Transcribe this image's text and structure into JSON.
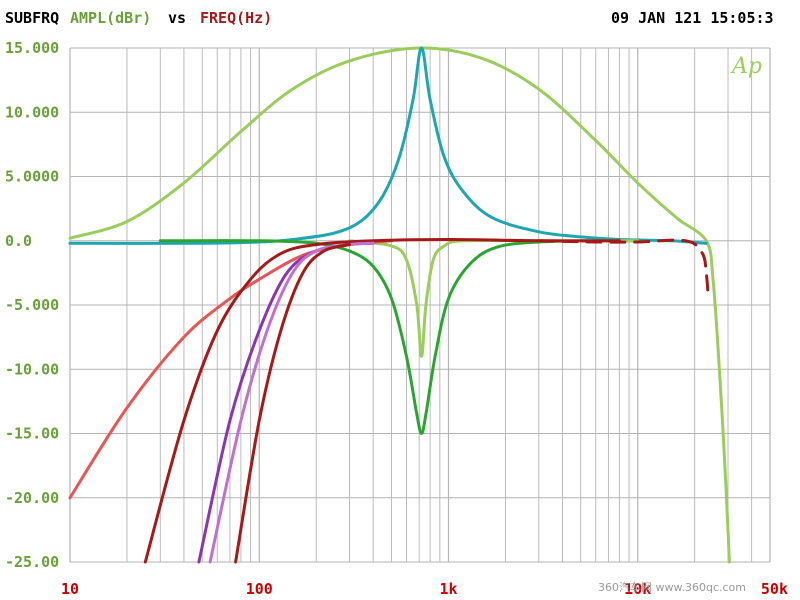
{
  "header": {
    "name": "SUBFRQ",
    "yname": "AMPL(dBr)",
    "vs": "vs",
    "xname": "FREQ(Hz)",
    "datetime": "09 JAN 121 15:05:3"
  },
  "brand": "Ap",
  "watermark": "360汽车网 www.360qc.com",
  "colors": {
    "light_green": "#9bcd5c",
    "teal": "#1ea7b1",
    "green": "#2aa532",
    "dark_red": "#a61919",
    "red": "#e85555",
    "purple": "#8c35b0",
    "lavender": "#c070cf",
    "grid": "#b4b4b4",
    "ytick": "#6aa038",
    "xtick": "#c80000"
  },
  "chart_data": {
    "type": "line",
    "title": "",
    "xlabel": "FREQ(Hz)",
    "ylabel": "AMPL(dBr)",
    "xscale": "log",
    "xlim": [
      10,
      50000
    ],
    "ylim": [
      -25,
      15
    ],
    "grid": true,
    "yticks": [
      {
        "v": 15,
        "label": "15.000"
      },
      {
        "v": 10,
        "label": "10.000"
      },
      {
        "v": 5,
        "label": "5.0000"
      },
      {
        "v": 0,
        "label": "0.0"
      },
      {
        "v": -5,
        "label": "-5.000"
      },
      {
        "v": -10,
        "label": "-10.00"
      },
      {
        "v": -15,
        "label": "-15.00"
      },
      {
        "v": -20,
        "label": "-20.00"
      },
      {
        "v": -25,
        "label": "-25.00"
      }
    ],
    "xticks": [
      {
        "v": 10,
        "label": "10"
      },
      {
        "v": 100,
        "label": "100"
      },
      {
        "v": 1000,
        "label": "1k"
      },
      {
        "v": 10000,
        "label": "10k"
      },
      {
        "v": 50000,
        "label": "50k"
      }
    ],
    "series": [
      {
        "color": "#9bcd5c",
        "width": 3,
        "points": [
          [
            10,
            0.2
          ],
          [
            20,
            1.5
          ],
          [
            40,
            4.5
          ],
          [
            80,
            8.5
          ],
          [
            150,
            11.8
          ],
          [
            300,
            14
          ],
          [
            700,
            15
          ],
          [
            1500,
            14.2
          ],
          [
            3000,
            11.8
          ],
          [
            6000,
            7.8
          ],
          [
            10000,
            4.5
          ],
          [
            16000,
            1.8
          ],
          [
            23000,
            0
          ],
          [
            25000,
            -3
          ],
          [
            27000,
            -10
          ],
          [
            29000,
            -18
          ],
          [
            30500,
            -25
          ]
        ]
      },
      {
        "color": "#1ea7b1",
        "width": 3,
        "points": [
          [
            10,
            -0.2
          ],
          [
            50,
            -0.2
          ],
          [
            100,
            -0.1
          ],
          [
            150,
            0.1
          ],
          [
            250,
            0.6
          ],
          [
            350,
            1.6
          ],
          [
            450,
            3.5
          ],
          [
            550,
            6.5
          ],
          [
            650,
            11
          ],
          [
            720,
            15
          ],
          [
            800,
            11
          ],
          [
            950,
            6.5
          ],
          [
            1200,
            3.8
          ],
          [
            1700,
            1.8
          ],
          [
            3000,
            0.7
          ],
          [
            5000,
            0.3
          ],
          [
            8000,
            0.1
          ],
          [
            15000,
            0
          ],
          [
            23000,
            -0.2
          ]
        ]
      },
      {
        "color": "#2aa532",
        "width": 3,
        "points": [
          [
            30,
            0
          ],
          [
            100,
            0
          ],
          [
            200,
            -0.2
          ],
          [
            300,
            -0.8
          ],
          [
            400,
            -2
          ],
          [
            500,
            -4.5
          ],
          [
            600,
            -9
          ],
          [
            680,
            -13.5
          ],
          [
            720,
            -15
          ],
          [
            760,
            -13.5
          ],
          [
            850,
            -9
          ],
          [
            1000,
            -4.5
          ],
          [
            1300,
            -1.8
          ],
          [
            1800,
            -0.5
          ],
          [
            3000,
            -0.1
          ],
          [
            6000,
            0
          ],
          [
            10000,
            0
          ]
        ]
      },
      {
        "color": "#9bcd5c",
        "width": 3,
        "points": [
          [
            300,
            0
          ],
          [
            500,
            -0.4
          ],
          [
            600,
            -1.5
          ],
          [
            680,
            -5
          ],
          [
            720,
            -9
          ],
          [
            760,
            -5
          ],
          [
            830,
            -1.5
          ],
          [
            950,
            -0.4
          ],
          [
            1200,
            0
          ],
          [
            3000,
            0
          ],
          [
            10000,
            0
          ]
        ]
      },
      {
        "color": "#e85555",
        "width": 3,
        "points": [
          [
            10,
            -20
          ],
          [
            20,
            -13
          ],
          [
            40,
            -7.5
          ],
          [
            70,
            -4.5
          ],
          [
            100,
            -3
          ],
          [
            150,
            -1.5
          ],
          [
            200,
            -0.8
          ],
          [
            300,
            -0.3
          ],
          [
            500,
            0
          ]
        ]
      },
      {
        "color": "#a61919",
        "width": 3,
        "points": [
          [
            25,
            -25
          ],
          [
            40,
            -14
          ],
          [
            60,
            -7
          ],
          [
            90,
            -3
          ],
          [
            130,
            -1
          ],
          [
            200,
            -0.3
          ],
          [
            400,
            0
          ],
          [
            1000,
            0.1
          ],
          [
            3000,
            0
          ],
          [
            8000,
            0
          ]
        ]
      },
      {
        "color": "#8c35b0",
        "width": 3,
        "points": [
          [
            48,
            -25
          ],
          [
            70,
            -14
          ],
          [
            100,
            -7
          ],
          [
            140,
            -2.5
          ],
          [
            200,
            -0.8
          ],
          [
            300,
            -0.3
          ],
          [
            400,
            -0.2
          ]
        ]
      },
      {
        "color": "#c070cf",
        "width": 3,
        "points": [
          [
            55,
            -25
          ],
          [
            80,
            -14
          ],
          [
            110,
            -7
          ],
          [
            150,
            -2.5
          ],
          [
            200,
            -0.8
          ],
          [
            300,
            -0.3
          ],
          [
            400,
            -0.2
          ]
        ]
      },
      {
        "color": "#a61919",
        "width": 3,
        "points": [
          [
            75,
            -25
          ],
          [
            100,
            -14
          ],
          [
            130,
            -7
          ],
          [
            170,
            -2.5
          ],
          [
            220,
            -0.8
          ],
          [
            300,
            -0.3
          ]
        ]
      },
      {
        "color": "#a61919",
        "width": 3,
        "dash": true,
        "points": [
          [
            3000,
            0
          ],
          [
            6000,
            -0.1
          ],
          [
            10000,
            -0.1
          ],
          [
            18000,
            0
          ],
          [
            22000,
            -1
          ],
          [
            23000,
            -2.5
          ],
          [
            23500,
            -4
          ]
        ]
      }
    ]
  }
}
